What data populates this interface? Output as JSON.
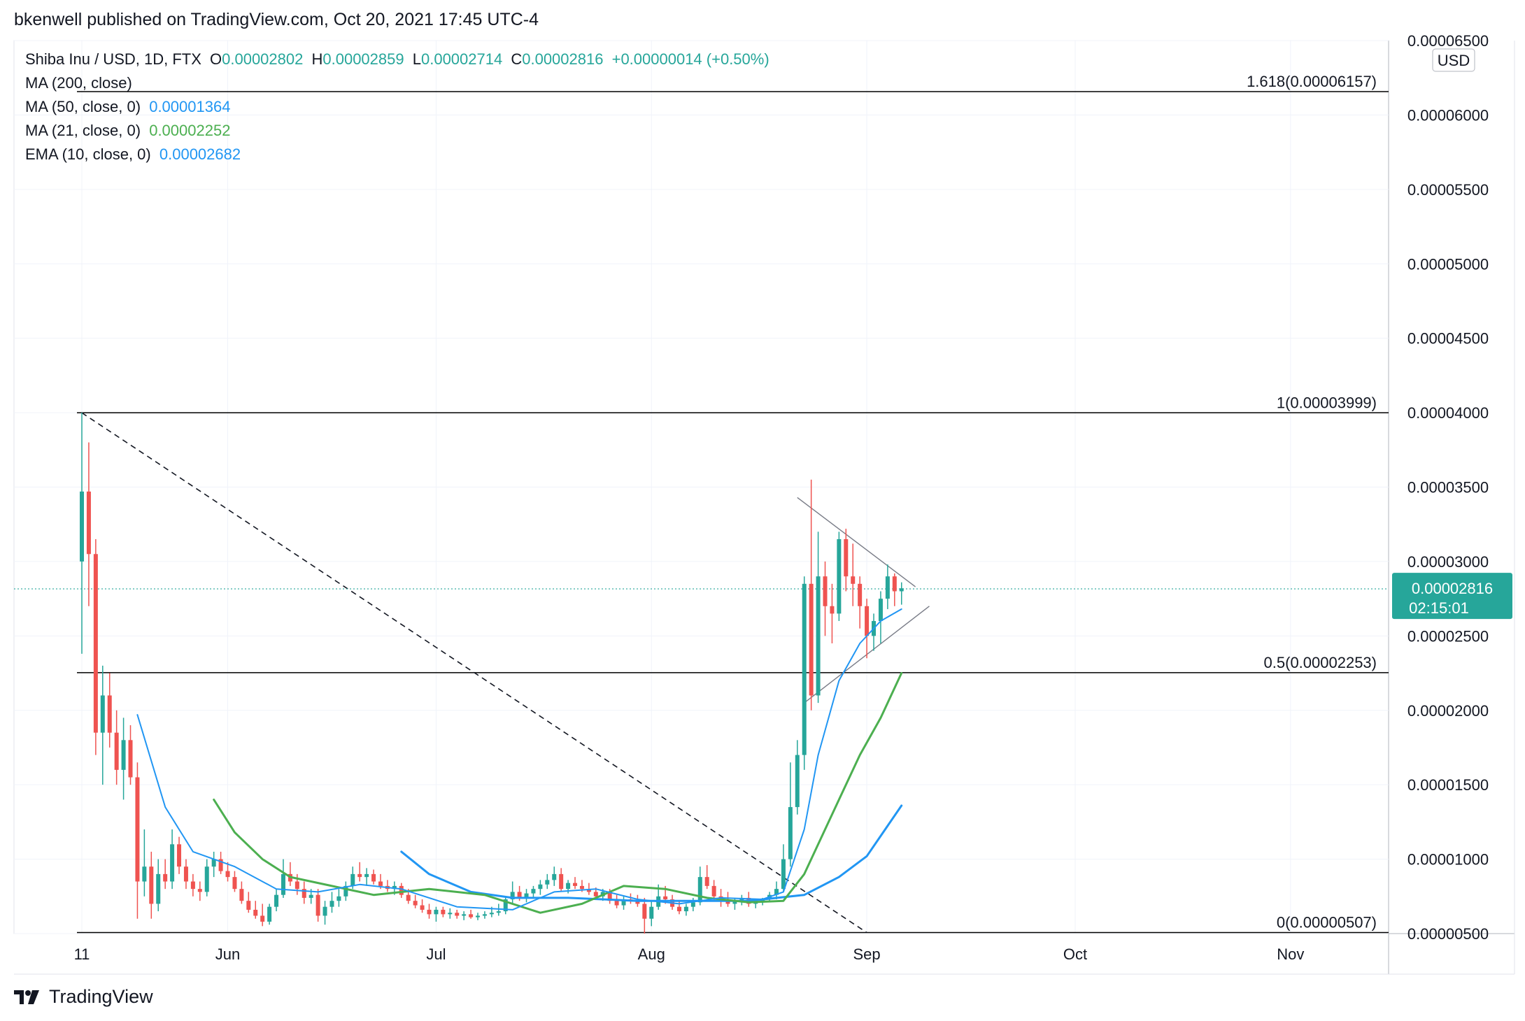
{
  "header": {
    "publisher_text": "bkenwell published on TradingView.com, Oct 20, 2021 17:45 UTC-4"
  },
  "legend": {
    "symbol": "Shiba Inu / USD, 1D, FTX",
    "open_label": "O",
    "open": "0.00002802",
    "high_label": "H",
    "high": "0.00002859",
    "low_label": "L",
    "low": "0.00002714",
    "close_label": "C",
    "close": "0.00002816",
    "change": "+0.00000014 (+0.50%)",
    "ma200": "MA (200, close)",
    "ma50_label": "MA (50, close, 0)",
    "ma50_value": "0.00001364",
    "ma21_label": "MA (21, close, 0)",
    "ma21_value": "0.00002252",
    "ema10_label": "EMA (10, close, 0)",
    "ema10_value": "0.00002682"
  },
  "price_scale": {
    "currency": "USD",
    "last_price": "0.00002816",
    "countdown": "02:15:01"
  },
  "footer": {
    "brand": "TradingView"
  },
  "colors": {
    "up": "#26a69a",
    "down": "#ef5350",
    "ma50": "#2196f3",
    "ma21": "#4caf50",
    "ema10": "#2196f3",
    "text": "#131722",
    "grid": "#f0f3fa",
    "fib": "#000000"
  },
  "chart_data": {
    "type": "candlestick",
    "title": "Shiba Inu / USD, 1D, FTX",
    "ylim": [
      5e-06,
      6.5e-05
    ],
    "y_ticks": [
      "0.00000500",
      "0.00001000",
      "0.00001500",
      "0.00002000",
      "0.00002500",
      "0.00003000",
      "0.00003500",
      "0.00004000",
      "0.00004500",
      "0.00005000",
      "0.00005500",
      "0.00006000",
      "0.00006500"
    ],
    "x_ticks": [
      {
        "label": "11",
        "day": 0
      },
      {
        "label": "Jun",
        "day": 21
      },
      {
        "label": "Jul",
        "day": 51
      },
      {
        "label": "Aug",
        "day": 82
      },
      {
        "label": "Sep",
        "day": 113
      },
      {
        "label": "Oct",
        "day": 143
      },
      {
        "label": "Nov",
        "day": 174
      }
    ],
    "fib_levels": [
      {
        "label": "1.618(0.00006157)",
        "price": 6.157e-05
      },
      {
        "label": "1(0.00003999)",
        "price": 3.999e-05
      },
      {
        "label": "0.5(0.00002253)",
        "price": 2.253e-05
      },
      {
        "label": "0(0.00000507)",
        "price": 5.07e-06
      }
    ],
    "last_price": 2.816e-05,
    "candles": [
      [
        0,
        3e-05,
        4e-05,
        2.38e-05,
        3.47e-05
      ],
      [
        1,
        3.47e-05,
        3.8e-05,
        2.7e-05,
        3.05e-05
      ],
      [
        2,
        3.05e-05,
        3.15e-05,
        1.7e-05,
        1.85e-05
      ],
      [
        3,
        1.85e-05,
        2.3e-05,
        1.5e-05,
        2.1e-05
      ],
      [
        4,
        2.1e-05,
        2.25e-05,
        1.75e-05,
        1.85e-05
      ],
      [
        5,
        1.85e-05,
        2e-05,
        1.5e-05,
        1.6e-05
      ],
      [
        6,
        1.6e-05,
        1.95e-05,
        1.4e-05,
        1.8e-05
      ],
      [
        7,
        1.8e-05,
        1.9e-05,
        1.5e-05,
        1.55e-05
      ],
      [
        8,
        1.55e-05,
        1.65e-05,
        6e-06,
        8.5e-06
      ],
      [
        9,
        8.5e-06,
        1.2e-05,
        7.5e-06,
        9.5e-06
      ],
      [
        10,
        9.5e-06,
        1.05e-05,
        6e-06,
        7e-06
      ],
      [
        11,
        7e-06,
        1e-05,
        6.5e-06,
        9e-06
      ],
      [
        12,
        9e-06,
        1e-05,
        8e-06,
        8.5e-06
      ],
      [
        13,
        8.5e-06,
        1.2e-05,
        8e-06,
        1.1e-05
      ],
      [
        14,
        1.1e-05,
        1.15e-05,
        9e-06,
        9.5e-06
      ],
      [
        15,
        9.5e-06,
        1e-05,
        8e-06,
        8.5e-06
      ],
      [
        16,
        8.5e-06,
        9e-06,
        7.5e-06,
        8e-06
      ],
      [
        17,
        8e-06,
        8.5e-06,
        7.2e-06,
        7.8e-06
      ],
      [
        18,
        7.8e-06,
        1e-05,
        7.5e-06,
        9.5e-06
      ],
      [
        19,
        9.5e-06,
        1.05e-05,
        8.8e-06,
        1e-05
      ],
      [
        20,
        1e-05,
        1.05e-05,
        9e-06,
        9.2e-06
      ],
      [
        21,
        9.2e-06,
        9.8e-06,
        8.5e-06,
        8.8e-06
      ],
      [
        22,
        8.8e-06,
        9.2e-06,
        7.8e-06,
        8e-06
      ],
      [
        23,
        8e-06,
        8.5e-06,
        7e-06,
        7.2e-06
      ],
      [
        24,
        7.2e-06,
        7.8e-06,
        6.4e-06,
        6.6e-06
      ],
      [
        25,
        6.6e-06,
        7.2e-06,
        6e-06,
        6.2e-06
      ],
      [
        26,
        6.2e-06,
        7e-06,
        5.5e-06,
        5.8e-06
      ],
      [
        27,
        5.8e-06,
        7e-06,
        5.6e-06,
        6.8e-06
      ],
      [
        28,
        6.8e-06,
        8e-06,
        6.5e-06,
        7.6e-06
      ],
      [
        29,
        7.6e-06,
        1e-05,
        7.4e-06,
        9e-06
      ],
      [
        30,
        9e-06,
        9.8e-06,
        8.2e-06,
        8.5e-06
      ],
      [
        31,
        8.5e-06,
        9e-06,
        7.6e-06,
        8e-06
      ],
      [
        32,
        8e-06,
        8.5e-06,
        7e-06,
        7.4e-06
      ],
      [
        33,
        7.4e-06,
        8e-06,
        7e-06,
        7.6e-06
      ],
      [
        34,
        7.6e-06,
        8e-06,
        5.8e-06,
        6.2e-06
      ],
      [
        35,
        6.2e-06,
        7.2e-06,
        5.6e-06,
        6.8e-06
      ],
      [
        36,
        6.8e-06,
        7.8e-06,
        6.4e-06,
        7.2e-06
      ],
      [
        37,
        7.2e-06,
        8e-06,
        6.8e-06,
        7.5e-06
      ],
      [
        38,
        7.5e-06,
        8.5e-06,
        7.2e-06,
        8.2e-06
      ],
      [
        39,
        8.2e-06,
        9.5e-06,
        8e-06,
        9e-06
      ],
      [
        40,
        9e-06,
        9.8e-06,
        8.5e-06,
        8.8e-06
      ],
      [
        41,
        8.8e-06,
        9.4e-06,
        8.2e-06,
        9e-06
      ],
      [
        42,
        9e-06,
        9.3e-06,
        8.3e-06,
        8.5e-06
      ],
      [
        43,
        8.5e-06,
        9e-06,
        8e-06,
        8.2e-06
      ],
      [
        44,
        8.2e-06,
        8.6e-06,
        7.8e-06,
        8e-06
      ],
      [
        45,
        8e-06,
        8.5e-06,
        7.6e-06,
        8.2e-06
      ],
      [
        46,
        8.2e-06,
        8.4e-06,
        7.4e-06,
        7.6e-06
      ],
      [
        47,
        7.6e-06,
        8e-06,
        7e-06,
        7.2e-06
      ],
      [
        48,
        7.2e-06,
        7.6e-06,
        6.7e-06,
        6.9e-06
      ],
      [
        49,
        6.9e-06,
        7.3e-06,
        6.4e-06,
        6.6e-06
      ],
      [
        50,
        6.6e-06,
        7e-06,
        6e-06,
        6.3e-06
      ],
      [
        51,
        6.3e-06,
        6.8e-06,
        5.8e-06,
        6.6e-06
      ],
      [
        52,
        6.6e-06,
        6.8e-06,
        6.1e-06,
        6.3e-06
      ],
      [
        53,
        6.3e-06,
        6.7e-06,
        6e-06,
        6.4e-06
      ],
      [
        54,
        6.4e-06,
        6.6e-06,
        6e-06,
        6.2e-06
      ],
      [
        55,
        6.2e-06,
        6.5e-06,
        5.9e-06,
        6.3e-06
      ],
      [
        56,
        6.3e-06,
        6.6e-06,
        6e-06,
        6.1e-06
      ],
      [
        57,
        6.1e-06,
        6.4e-06,
        5.9e-06,
        6.2e-06
      ],
      [
        58,
        6.2e-06,
        6.5e-06,
        6e-06,
        6.3e-06
      ],
      [
        59,
        6.3e-06,
        6.8e-06,
        6.1e-06,
        6.4e-06
      ],
      [
        60,
        6.4e-06,
        7e-06,
        6.2e-06,
        6.5e-06
      ],
      [
        61,
        6.5e-06,
        7.5e-06,
        6.3e-06,
        7.3e-06
      ],
      [
        62,
        7.3e-06,
        8.5e-06,
        7e-06,
        7.8e-06
      ],
      [
        63,
        7.8e-06,
        8.2e-06,
        7.2e-06,
        7.4e-06
      ],
      [
        64,
        7.4e-06,
        8e-06,
        7.1e-06,
        7.7e-06
      ],
      [
        65,
        7.7e-06,
        8.2e-06,
        7.4e-06,
        8e-06
      ],
      [
        66,
        8e-06,
        8.6e-06,
        7.6e-06,
        8.3e-06
      ],
      [
        67,
        8.3e-06,
        9e-06,
        8e-06,
        8.6e-06
      ],
      [
        68,
        8.6e-06,
        9.5e-06,
        8.2e-06,
        9e-06
      ],
      [
        69,
        9e-06,
        9.4e-06,
        7.8e-06,
        8e-06
      ],
      [
        70,
        8e-06,
        8.6e-06,
        7.7e-06,
        8.4e-06
      ],
      [
        71,
        8.4e-06,
        8.8e-06,
        8e-06,
        8.2e-06
      ],
      [
        72,
        8.2e-06,
        8.6e-06,
        7.8e-06,
        8e-06
      ],
      [
        73,
        8e-06,
        8.4e-06,
        7.6e-06,
        7.8e-06
      ],
      [
        74,
        7.8e-06,
        8.1e-06,
        7.3e-06,
        7.5e-06
      ],
      [
        75,
        7.5e-06,
        8e-06,
        7.2e-06,
        7.8e-06
      ],
      [
        76,
        7.8e-06,
        8e-06,
        7e-06,
        7.2e-06
      ],
      [
        77,
        7.2e-06,
        7.6e-06,
        6.7e-06,
        6.9e-06
      ],
      [
        78,
        6.9e-06,
        7.5e-06,
        6.6e-06,
        7.3e-06
      ],
      [
        79,
        7.3e-06,
        7.7e-06,
        7e-06,
        7.2e-06
      ],
      [
        80,
        7.2e-06,
        7.6e-06,
        6.8e-06,
        7e-06
      ],
      [
        81,
        7e-06,
        7.4e-06,
        5e-06,
        6e-06
      ],
      [
        82,
        6e-06,
        7.2e-06,
        5.5e-06,
        6.8e-06
      ],
      [
        83,
        6.8e-06,
        8.3e-06,
        6.6e-06,
        7.5e-06
      ],
      [
        84,
        7.5e-06,
        8.2e-06,
        7e-06,
        7.3e-06
      ],
      [
        85,
        7.3e-06,
        7.6e-06,
        6.6e-06,
        6.8e-06
      ],
      [
        86,
        6.8e-06,
        7.2e-06,
        6.3e-06,
        6.5e-06
      ],
      [
        87,
        6.5e-06,
        7e-06,
        6.2e-06,
        6.8e-06
      ],
      [
        88,
        6.8e-06,
        7.4e-06,
        6.5e-06,
        7.1e-06
      ],
      [
        89,
        7.1e-06,
        9.5e-06,
        6.9e-06,
        8.8e-06
      ],
      [
        90,
        8.8e-06,
        9.6e-06,
        8e-06,
        8.2e-06
      ],
      [
        91,
        8.2e-06,
        8.6e-06,
        7.2e-06,
        7.5e-06
      ],
      [
        92,
        7.5e-06,
        8e-06,
        6.8e-06,
        7.2e-06
      ],
      [
        93,
        7.2e-06,
        7.8e-06,
        6.8e-06,
        7e-06
      ],
      [
        94,
        7e-06,
        7.4e-06,
        6.6e-06,
        7.2e-06
      ],
      [
        95,
        7.2e-06,
        7.6e-06,
        6.9e-06,
        7.4e-06
      ],
      [
        96,
        7.4e-06,
        7.8e-06,
        6.8e-06,
        7e-06
      ],
      [
        97,
        7e-06,
        7.3e-06,
        6.7e-06,
        7.1e-06
      ],
      [
        98,
        7.1e-06,
        7.4e-06,
        6.9e-06,
        7.3e-06
      ],
      [
        99,
        7.3e-06,
        7.8e-06,
        7.1e-06,
        7.6e-06
      ],
      [
        100,
        7.6e-06,
        8.5e-06,
        7.3e-06,
        8e-06
      ],
      [
        101,
        8e-06,
        1.1e-05,
        7.8e-06,
        1e-05
      ],
      [
        102,
        1e-05,
        1.65e-05,
        9.5e-06,
        1.35e-05
      ],
      [
        103,
        1.35e-05,
        1.8e-05,
        1.3e-05,
        1.7e-05
      ],
      [
        104,
        1.7e-05,
        2.9e-05,
        1.6e-05,
        2.85e-05
      ],
      [
        105,
        2.85e-05,
        3.55e-05,
        2e-05,
        2.1e-05
      ],
      [
        106,
        2.1e-05,
        3.2e-05,
        2.05e-05,
        2.9e-05
      ],
      [
        107,
        2.9e-05,
        3e-05,
        2.5e-05,
        2.7e-05
      ],
      [
        108,
        2.7e-05,
        2.85e-05,
        2.45e-05,
        2.65e-05
      ],
      [
        109,
        2.65e-05,
        3.2e-05,
        2.6e-05,
        3.15e-05
      ],
      [
        110,
        3.15e-05,
        3.22e-05,
        2.8e-05,
        2.9e-05
      ],
      [
        111,
        2.9e-05,
        3.12e-05,
        2.7e-05,
        2.85e-05
      ],
      [
        112,
        2.85e-05,
        2.9e-05,
        2.55e-05,
        2.7e-05
      ],
      [
        113,
        2.7e-05,
        2.75e-05,
        2.35e-05,
        2.5e-05
      ],
      [
        114,
        2.5e-05,
        2.65e-05,
        2.4e-05,
        2.6e-05
      ],
      [
        115,
        2.6e-05,
        2.8e-05,
        2.45e-05,
        2.75e-05
      ],
      [
        116,
        2.75e-05,
        2.98e-05,
        2.68e-05,
        2.9e-05
      ],
      [
        117,
        2.9e-05,
        2.92e-05,
        2.7e-05,
        2.8e-05
      ],
      [
        118,
        2.8e-05,
        2.86e-05,
        2.71e-05,
        2.82e-05
      ]
    ],
    "series": [
      {
        "name": "MA (50, close, 0)",
        "color": "#2196f3",
        "width": 3,
        "points": [
          [
            46,
            1.05e-05
          ],
          [
            50,
            9e-06
          ],
          [
            56,
            7.8e-06
          ],
          [
            62,
            7.4e-06
          ],
          [
            70,
            7.4e-06
          ],
          [
            80,
            7.2e-06
          ],
          [
            88,
            7.2e-06
          ],
          [
            96,
            7.2e-06
          ],
          [
            104,
            7.6e-06
          ],
          [
            109,
            8.8e-06
          ],
          [
            113,
            1.02e-05
          ],
          [
            118,
            1.36e-05
          ]
        ]
      },
      {
        "name": "MA (21, close, 0)",
        "color": "#4caf50",
        "width": 3,
        "points": [
          [
            19,
            1.4e-05
          ],
          [
            22,
            1.18e-05
          ],
          [
            26,
            1e-05
          ],
          [
            30,
            8.8e-06
          ],
          [
            36,
            8.2e-06
          ],
          [
            42,
            7.6e-06
          ],
          [
            50,
            8e-06
          ],
          [
            58,
            7.6e-06
          ],
          [
            66,
            6.4e-06
          ],
          [
            72,
            7e-06
          ],
          [
            78,
            8.2e-06
          ],
          [
            84,
            8e-06
          ],
          [
            90,
            7.4e-06
          ],
          [
            96,
            7.1e-06
          ],
          [
            101,
            7.2e-06
          ],
          [
            104,
            9e-06
          ],
          [
            108,
            1.3e-05
          ],
          [
            112,
            1.7e-05
          ],
          [
            115,
            1.95e-05
          ],
          [
            118,
            2.25e-05
          ]
        ]
      },
      {
        "name": "EMA (10, close, 0)",
        "color": "#2196f3",
        "width": 2,
        "points": [
          [
            8,
            1.97e-05
          ],
          [
            12,
            1.35e-05
          ],
          [
            16,
            1.05e-05
          ],
          [
            22,
            9.5e-06
          ],
          [
            28,
            8e-06
          ],
          [
            34,
            7.8e-06
          ],
          [
            40,
            8.3e-06
          ],
          [
            46,
            8e-06
          ],
          [
            54,
            6.8e-06
          ],
          [
            62,
            6.6e-06
          ],
          [
            68,
            7.8e-06
          ],
          [
            74,
            8e-06
          ],
          [
            80,
            7.3e-06
          ],
          [
            86,
            7e-06
          ],
          [
            92,
            7.4e-06
          ],
          [
            98,
            7.3e-06
          ],
          [
            101,
            7.8e-06
          ],
          [
            104,
            1.2e-05
          ],
          [
            106,
            1.7e-05
          ],
          [
            109,
            2.2e-05
          ],
          [
            112,
            2.45e-05
          ],
          [
            115,
            2.6e-05
          ],
          [
            118,
            2.68e-05
          ]
        ]
      }
    ],
    "trendlines": [
      {
        "style": "dashed",
        "from": [
          0,
          3.999e-05
        ],
        "to": [
          113,
          5.07e-06
        ]
      },
      {
        "style": "solid",
        "from": [
          103,
          3.43e-05
        ],
        "to": [
          120,
          2.83e-05
        ]
      },
      {
        "style": "solid",
        "from": [
          104,
          2.05e-05
        ],
        "to": [
          122,
          2.7e-05
        ]
      }
    ]
  }
}
